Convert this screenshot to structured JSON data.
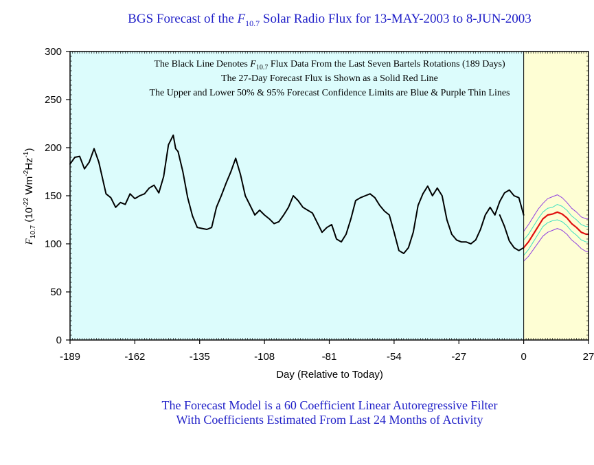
{
  "title": {
    "prefix": "BGS Forecast of the ",
    "symbol": "F",
    "symbol_sub": "10.7",
    "suffix": " Solar Radio Flux for  13-MAY-2003 to 8-JUN-2003"
  },
  "notes": {
    "line1_prefix": "The Black Line Denotes ",
    "line1_symbol": "F",
    "line1_sub": "10.7",
    "line1_suffix": " Flux Data From the Last Seven Bartels Rotations (189 Days)",
    "line2": "The 27-Day Forecast Flux is Shown as a Solid Red Line",
    "line3": "The Upper and Lower 50% & 95% Forecast Confidence Limits are Blue & Purple Thin Lines"
  },
  "footer": {
    "line1": "The Forecast Model is a 60 Coefficient Linear Autoregressive Filter",
    "line2": "With Coefficients Estimated From Last 24 Months of Activity"
  },
  "colors": {
    "history_bg": "#dcfcfc",
    "forecast_bg": "#fefed4",
    "title_text": "#2020c8",
    "observed": "#000000",
    "forecast": "#e01010",
    "limit50": "#40e0c0",
    "limit95": "#9040e0"
  },
  "chart_data": {
    "type": "line",
    "xlabel": "Day (Relative to Today)",
    "ylabel_symbol": "F",
    "ylabel_sub": "10.7",
    "ylabel_units_pre": " (10",
    "ylabel_exp1": "-22",
    "ylabel_units_mid": " Wm",
    "ylabel_exp2": "-2",
    "ylabel_units_mid2": "Hz",
    "ylabel_exp3": "-1",
    "ylabel_units_post": ")",
    "xlim": [
      -189,
      27
    ],
    "ylim": [
      0,
      300
    ],
    "xticks": [
      -189,
      -162,
      -135,
      -108,
      -81,
      -54,
      -27,
      0,
      27
    ],
    "yticks": [
      0,
      50,
      100,
      150,
      200,
      250,
      300
    ],
    "grid": false,
    "series": [
      {
        "key": "observed",
        "x": [
          -189,
          -187,
          -185,
          -183,
          -181,
          -179,
          -177,
          -175,
          -174,
          -172,
          -170,
          -168,
          -166,
          -164,
          -162,
          -160,
          -158,
          -156,
          -154,
          -152,
          -150,
          -148,
          -146,
          -145,
          -144,
          -142,
          -140,
          -138,
          -136,
          -134,
          -132,
          -130,
          -128,
          -126,
          -124,
          -122,
          -120,
          -118,
          -116,
          -114,
          -112,
          -110,
          -108,
          -106,
          -104,
          -102,
          -100,
          -98,
          -96,
          -94,
          -92,
          -90,
          -88,
          -86,
          -84,
          -82,
          -80,
          -78,
          -76,
          -74,
          -72,
          -70,
          -68,
          -66,
          -64,
          -62,
          -60,
          -58,
          -56,
          -54,
          -52,
          -50,
          -48,
          -46,
          -44,
          -42,
          -40,
          -38,
          -36,
          -34,
          -32,
          -30,
          -28,
          -26,
          -24,
          -22,
          -20,
          -18,
          -16,
          -14,
          -12,
          -10,
          -8,
          -6,
          -4,
          -2,
          0
        ],
        "y": [
          183,
          190,
          191,
          178,
          185,
          199,
          185,
          163,
          152,
          148,
          138,
          143,
          141,
          152,
          147,
          150,
          152,
          158,
          161,
          153,
          170,
          203,
          213,
          199,
          196,
          175,
          148,
          129,
          117,
          116,
          115,
          117,
          138,
          150,
          163,
          175,
          189,
          172,
          150,
          140,
          130,
          135,
          130,
          126,
          121,
          123,
          130,
          138,
          150,
          145,
          138,
          135,
          132,
          122,
          112,
          117,
          120,
          105,
          102,
          110,
          126,
          145,
          148,
          150,
          152,
          148,
          140,
          134,
          130,
          112,
          93,
          90,
          96,
          112,
          140,
          152,
          160,
          150,
          158,
          150,
          125,
          110,
          104,
          102,
          102,
          100,
          104,
          115,
          130,
          138,
          130,
          144,
          153,
          156,
          150,
          148,
          130
        ]
      },
      {
        "key": "observed_tail",
        "x": [
          -10,
          -8,
          -6,
          -4,
          -2,
          0
        ],
        "y": [
          130,
          118,
          103,
          96,
          93,
          96
        ]
      },
      {
        "key": "forecast",
        "name": "Forecast",
        "x": [
          0,
          2,
          4,
          6,
          8,
          10,
          12,
          14,
          16,
          18,
          20,
          22,
          24,
          26,
          27
        ],
        "y": [
          96,
          102,
          110,
          118,
          126,
          130,
          131,
          133,
          131,
          127,
          121,
          117,
          112,
          110,
          110
        ]
      },
      {
        "key": "upper50",
        "x": [
          0,
          2,
          4,
          6,
          8,
          10,
          12,
          14,
          16,
          18,
          20,
          22,
          24,
          26,
          27
        ],
        "y": [
          104,
          110,
          118,
          126,
          133,
          137,
          138,
          141,
          139,
          135,
          129,
          125,
          120,
          118,
          118
        ]
      },
      {
        "key": "lower50",
        "x": [
          0,
          2,
          4,
          6,
          8,
          10,
          12,
          14,
          16,
          18,
          20,
          22,
          24,
          26,
          27
        ],
        "y": [
          88,
          94,
          102,
          110,
          118,
          122,
          124,
          125,
          123,
          119,
          113,
          109,
          104,
          102,
          102
        ]
      },
      {
        "key": "upper95",
        "x": [
          0,
          2,
          4,
          6,
          8,
          10,
          12,
          14,
          16,
          18,
          20,
          22,
          24,
          26,
          27
        ],
        "y": [
          113,
          120,
          128,
          136,
          142,
          147,
          149,
          151,
          148,
          143,
          137,
          133,
          128,
          126,
          126
        ]
      },
      {
        "key": "lower95",
        "x": [
          0,
          2,
          4,
          6,
          8,
          10,
          12,
          14,
          16,
          18,
          20,
          22,
          24,
          26,
          27
        ],
        "y": [
          82,
          87,
          94,
          101,
          108,
          112,
          114,
          116,
          114,
          110,
          104,
          100,
          95,
          92,
          92
        ]
      }
    ]
  }
}
